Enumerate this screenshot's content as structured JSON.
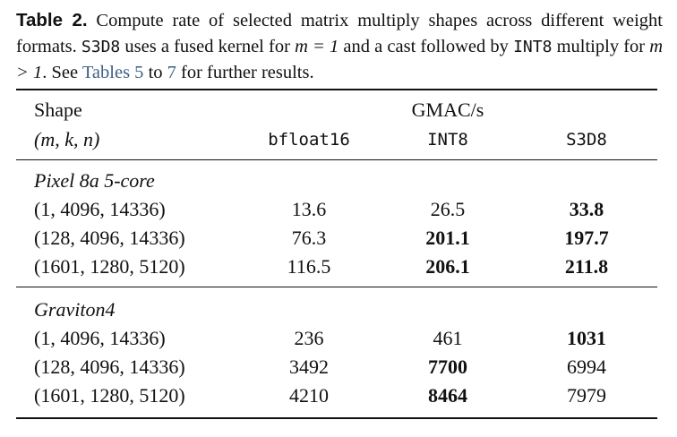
{
  "caption": {
    "label": "Table 2.",
    "parts": [
      "Compute rate of selected matrix multiply shapes across different weight formats.",
      "S3D8",
      "uses a fused kernel for",
      "m = 1",
      "and a cast followed by",
      "INT8",
      "multiply for",
      "m > 1",
      ". See",
      "Tables 5",
      "to",
      "7",
      "for further results."
    ]
  },
  "table": {
    "header": {
      "shape": "Shape",
      "shape_sub": "(m, k, n)",
      "metric": "GMAC/s",
      "columns": [
        "bfloat16",
        "INT8",
        "S3D8"
      ]
    },
    "groups": [
      {
        "name": "Pixel 8a 5-core",
        "rows": [
          {
            "shape": "(1, 4096, 14336)",
            "values": [
              13.6,
              26.5,
              33.8
            ],
            "bold": [
              false,
              false,
              true
            ]
          },
          {
            "shape": "(128, 4096, 14336)",
            "values": [
              76.3,
              201.1,
              197.7
            ],
            "bold": [
              false,
              true,
              true
            ]
          },
          {
            "shape": "(1601, 1280, 5120)",
            "values": [
              116.5,
              206.1,
              211.8
            ],
            "bold": [
              false,
              true,
              true
            ]
          }
        ]
      },
      {
        "name": "Graviton4",
        "rows": [
          {
            "shape": "(1, 4096, 14336)",
            "values": [
              236,
              461,
              1031
            ],
            "bold": [
              false,
              false,
              true
            ]
          },
          {
            "shape": "(128, 4096, 14336)",
            "values": [
              3492,
              7700,
              6994
            ],
            "bold": [
              false,
              true,
              false
            ]
          },
          {
            "shape": "(1601, 1280, 5120)",
            "values": [
              4210,
              8464,
              7979
            ],
            "bold": [
              false,
              true,
              false
            ]
          }
        ]
      }
    ]
  }
}
